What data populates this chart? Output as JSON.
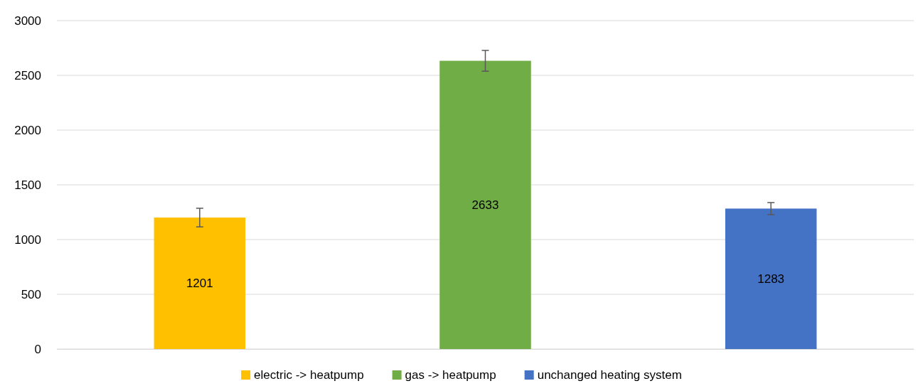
{
  "chart_data": {
    "type": "bar",
    "categories": [
      null
    ],
    "series": [
      {
        "name": "electric -> heatpump",
        "color": "#ffc000",
        "values": [
          1201
        ],
        "errors": [
          85
        ]
      },
      {
        "name": "gas -> heatpump",
        "color": "#70ad47",
        "values": [
          2633
        ],
        "errors": [
          95
        ]
      },
      {
        "name": "unchanged heating system",
        "color": "#4472c4",
        "values": [
          1283
        ],
        "errors": [
          55
        ]
      }
    ],
    "ylim": [
      0,
      3000
    ],
    "yticks": [
      0,
      500,
      1000,
      1500,
      2000,
      2500,
      3000
    ],
    "grid": "y",
    "legend": "bottom",
    "data_labels": true
  }
}
